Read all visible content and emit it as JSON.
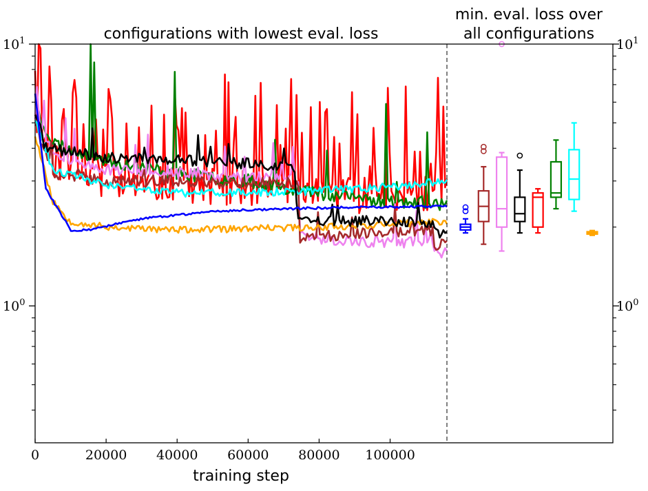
{
  "chart_data": {
    "type": "line",
    "title_left": "configurations with lowest eval. loss",
    "title_right_line1": "min. eval. loss over",
    "title_right_line2": "all configurations",
    "xlabel": "training step",
    "ylabel": "",
    "yscale": "log",
    "ylim": [
      0.3,
      10
    ],
    "xlim": [
      0,
      116000
    ],
    "x_ticks": [
      "0",
      "20000",
      "40000",
      "60000",
      "80000",
      "100000"
    ],
    "y_ticks": [
      {
        "base": "10",
        "exp": "1",
        "value": 10
      },
      {
        "base": "10",
        "exp": "0",
        "value": 1
      }
    ],
    "divider_x": 116000,
    "grid": false,
    "series": [
      {
        "color": "#ff0000",
        "base": [
          [
            0,
            5.5
          ],
          [
            5000,
            3.6
          ],
          [
            20000,
            3.0
          ],
          [
            40000,
            2.9
          ],
          [
            60000,
            2.8
          ],
          [
            80000,
            2.7
          ],
          [
            100000,
            2.6
          ],
          [
            116000,
            2.7
          ]
        ],
        "noise": 0.16,
        "spikes": 0.35,
        "spikeMax": 2.6,
        "seed": 11
      },
      {
        "color": "#008000",
        "base": [
          [
            0,
            5.8
          ],
          [
            5000,
            4.2
          ],
          [
            20000,
            3.6
          ],
          [
            40000,
            3.2
          ],
          [
            60000,
            3.0
          ],
          [
            80000,
            2.7
          ],
          [
            100000,
            2.5
          ],
          [
            116000,
            2.45
          ]
        ],
        "noise": 0.06,
        "spikes": 0.04,
        "spikeMax": 3.5,
        "seed": 23
      },
      {
        "color": "#ee82ee",
        "base": [
          [
            0,
            5.2
          ],
          [
            5000,
            3.8
          ],
          [
            20000,
            3.3
          ],
          [
            40000,
            3.2
          ],
          [
            60000,
            3.1
          ],
          [
            74500,
            3.1
          ],
          [
            74600,
            1.85
          ],
          [
            90000,
            1.75
          ],
          [
            112000,
            1.75
          ],
          [
            112100,
            1.6
          ],
          [
            116000,
            1.6
          ]
        ],
        "noise": 0.05,
        "spikes": 0.12,
        "spikeMax": 1.4,
        "seed": 31
      },
      {
        "color": "#a52a2a",
        "base": [
          [
            0,
            5.0
          ],
          [
            5000,
            3.2
          ],
          [
            20000,
            3.0
          ],
          [
            40000,
            3.0
          ],
          [
            60000,
            2.95
          ],
          [
            74500,
            2.95
          ],
          [
            74600,
            1.8
          ],
          [
            90000,
            1.9
          ],
          [
            112000,
            1.95
          ],
          [
            112100,
            1.7
          ],
          [
            116000,
            1.72
          ]
        ],
        "noise": 0.05,
        "spikes": 0.05,
        "spikeMax": 1.3,
        "seed": 41
      },
      {
        "color": "#ffa500",
        "base": [
          [
            0,
            4.5
          ],
          [
            5000,
            2.5
          ],
          [
            10000,
            2.1
          ],
          [
            20000,
            2.0
          ],
          [
            40000,
            1.95
          ],
          [
            60000,
            1.97
          ],
          [
            80000,
            2.0
          ],
          [
            100000,
            2.05
          ],
          [
            116000,
            2.1
          ]
        ],
        "noise": 0.03,
        "spikes": 0.0,
        "spikeMax": 1.0,
        "seed": 53
      },
      {
        "color": "#00ffff",
        "base": [
          [
            0,
            5.2
          ],
          [
            5000,
            3.3
          ],
          [
            20000,
            2.9
          ],
          [
            40000,
            2.7
          ],
          [
            60000,
            2.7
          ],
          [
            80000,
            2.75
          ],
          [
            100000,
            2.85
          ],
          [
            116000,
            3.0
          ]
        ],
        "noise": 0.035,
        "spikes": 0.0,
        "spikeMax": 1.0,
        "seed": 61
      },
      {
        "color": "#000000",
        "base": [
          [
            0,
            5.5
          ],
          [
            3000,
            4.0
          ],
          [
            20000,
            3.7
          ],
          [
            40000,
            3.6
          ],
          [
            60000,
            3.5
          ],
          [
            73000,
            3.4
          ],
          [
            74000,
            2.1
          ],
          [
            90000,
            2.1
          ],
          [
            112000,
            2.1
          ],
          [
            112100,
            1.9
          ],
          [
            116000,
            1.9
          ]
        ],
        "noise": 0.05,
        "spikes": 0.03,
        "spikeMax": 1.3,
        "seed": 71
      },
      {
        "color": "#0000ff",
        "base": [
          [
            0,
            6.5
          ],
          [
            3000,
            2.8
          ],
          [
            10000,
            1.95
          ],
          [
            15000,
            1.95
          ],
          [
            30000,
            2.15
          ],
          [
            50000,
            2.3
          ],
          [
            70000,
            2.35
          ],
          [
            90000,
            2.38
          ],
          [
            116000,
            2.4
          ]
        ],
        "noise": 0.01,
        "spikes": 0.0,
        "spikeMax": 1.0,
        "seed": 83
      }
    ],
    "boxes": [
      {
        "color": "#0000ff",
        "whislo": 1.9,
        "q1": 1.95,
        "med": 2.0,
        "q3": 2.05,
        "whishi": 2.15,
        "fliers": [
          2.3,
          2.38
        ]
      },
      {
        "color": "#a52a2a",
        "whislo": 1.72,
        "q1": 2.1,
        "med": 2.4,
        "q3": 2.75,
        "whishi": 3.4,
        "fliers": [
          3.9,
          4.05
        ]
      },
      {
        "color": "#ee82ee",
        "whislo": 1.62,
        "q1": 2.0,
        "med": 2.35,
        "q3": 3.7,
        "whishi": 3.85,
        "fliers": [
          10.0
        ]
      },
      {
        "color": "#000000",
        "whislo": 1.9,
        "q1": 2.1,
        "med": 2.25,
        "q3": 2.6,
        "whishi": 3.3,
        "fliers": [
          3.75
        ]
      },
      {
        "color": "#ff0000",
        "whislo": 1.9,
        "q1": 2.0,
        "med": 2.6,
        "q3": 2.7,
        "whishi": 2.8,
        "fliers": []
      },
      {
        "color": "#008000",
        "whislo": 2.35,
        "q1": 2.6,
        "med": 2.7,
        "q3": 3.55,
        "whishi": 4.3,
        "fliers": []
      },
      {
        "color": "#00ffff",
        "whislo": 2.3,
        "q1": 2.55,
        "med": 3.05,
        "q3": 3.95,
        "whishi": 5.0,
        "fliers": []
      },
      {
        "color": "#ffa500",
        "whislo": 1.86,
        "q1": 1.88,
        "med": 1.9,
        "q3": 1.92,
        "whishi": 1.94,
        "fliers": []
      }
    ]
  }
}
